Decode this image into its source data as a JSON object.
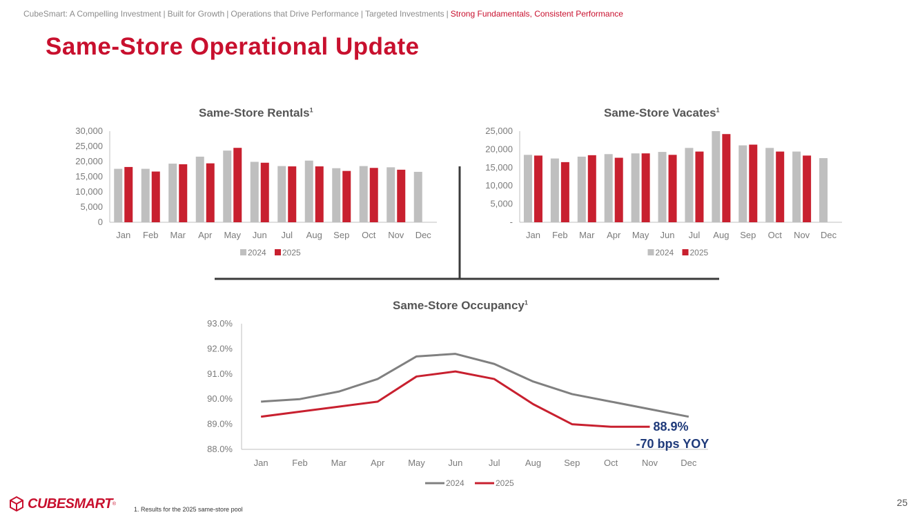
{
  "header": {
    "breadcrumb": [
      {
        "label": "CubeSmart: A Compelling Investment",
        "active": false
      },
      {
        "label": "Built for Growth",
        "active": false
      },
      {
        "label": "Operations that Drive Performance",
        "active": false
      },
      {
        "label": "Targeted Investments",
        "active": false
      },
      {
        "label": "Strong Fundamentals, Consistent Performance",
        "active": true
      }
    ],
    "separator": "|",
    "title": "Same-Store Operational Update"
  },
  "colors": {
    "accent": "#c8102e",
    "series_2024": "#bfbfbf",
    "series_2025": "#c8202f",
    "line_2024": "#808080",
    "annotation": "#1f3a7a",
    "connector": "#3a3a3a"
  },
  "chart_data": [
    {
      "id": "rentals",
      "type": "bar",
      "title": "Same-Store Rentals",
      "title_superscript": "1",
      "categories": [
        "Jan",
        "Feb",
        "Mar",
        "Apr",
        "May",
        "Jun",
        "Jul",
        "Aug",
        "Sep",
        "Oct",
        "Nov",
        "Dec"
      ],
      "series": [
        {
          "name": "2024",
          "values": [
            17600,
            17600,
            19300,
            21600,
            23600,
            19900,
            18500,
            20300,
            17800,
            18500,
            18100,
            16600
          ]
        },
        {
          "name": "2025",
          "values": [
            18200,
            16700,
            19100,
            19400,
            24500,
            19600,
            18400,
            18400,
            16900,
            17900,
            17300,
            null
          ]
        }
      ],
      "ylim": [
        0,
        30000
      ],
      "yticks": [
        0,
        5000,
        10000,
        15000,
        20000,
        25000,
        30000
      ],
      "ytick_labels": [
        "0",
        "5,000",
        "10,000",
        "15,000",
        "20,000",
        "25,000",
        "30,000"
      ],
      "legend": "bottom"
    },
    {
      "id": "vacates",
      "type": "bar",
      "title": "Same-Store Vacates",
      "title_superscript": "1",
      "categories": [
        "Jan",
        "Feb",
        "Mar",
        "Apr",
        "May",
        "Jun",
        "Jul",
        "Aug",
        "Sep",
        "Oct",
        "Nov",
        "Dec"
      ],
      "series": [
        {
          "name": "2024",
          "values": [
            18500,
            17500,
            18000,
            18700,
            18900,
            19300,
            20400,
            25000,
            21100,
            20400,
            19400,
            17600
          ]
        },
        {
          "name": "2025",
          "values": [
            18300,
            16500,
            18400,
            17700,
            18900,
            18500,
            19400,
            24200,
            21300,
            19400,
            18300,
            null
          ]
        }
      ],
      "ylim": [
        0,
        25000
      ],
      "yticks": [
        0,
        5000,
        10000,
        15000,
        20000,
        25000
      ],
      "ytick_labels": [
        "-",
        "5,000",
        "10,000",
        "15,000",
        "20,000",
        "25,000"
      ],
      "legend": "bottom"
    },
    {
      "id": "occupancy",
      "type": "line",
      "title": "Same-Store Occupancy",
      "title_superscript": "1",
      "categories": [
        "Jan",
        "Feb",
        "Mar",
        "Apr",
        "May",
        "Jun",
        "Jul",
        "Aug",
        "Sep",
        "Oct",
        "Nov",
        "Dec"
      ],
      "series": [
        {
          "name": "2024",
          "values": [
            89.9,
            90.0,
            90.3,
            90.8,
            91.7,
            91.8,
            91.4,
            90.7,
            90.2,
            89.9,
            89.6,
            89.3
          ]
        },
        {
          "name": "2025",
          "values": [
            89.3,
            89.5,
            89.7,
            89.9,
            90.9,
            91.1,
            90.8,
            89.8,
            89.0,
            88.9,
            88.9,
            null
          ]
        }
      ],
      "ylim": [
        88.0,
        93.0
      ],
      "yticks": [
        88.0,
        89.0,
        90.0,
        91.0,
        92.0,
        93.0
      ],
      "ytick_labels": [
        "88.0%",
        "89.0%",
        "90.0%",
        "91.0%",
        "92.0%",
        "93.0%"
      ],
      "annotations": [
        "88.9%",
        "-70 bps YOY"
      ],
      "legend": "bottom"
    }
  ],
  "footer": {
    "logo_text": "CUBESMART",
    "logo_tm": "®",
    "footnote": "1.    Results for the 2025 same-store pool",
    "page_number": "25"
  }
}
